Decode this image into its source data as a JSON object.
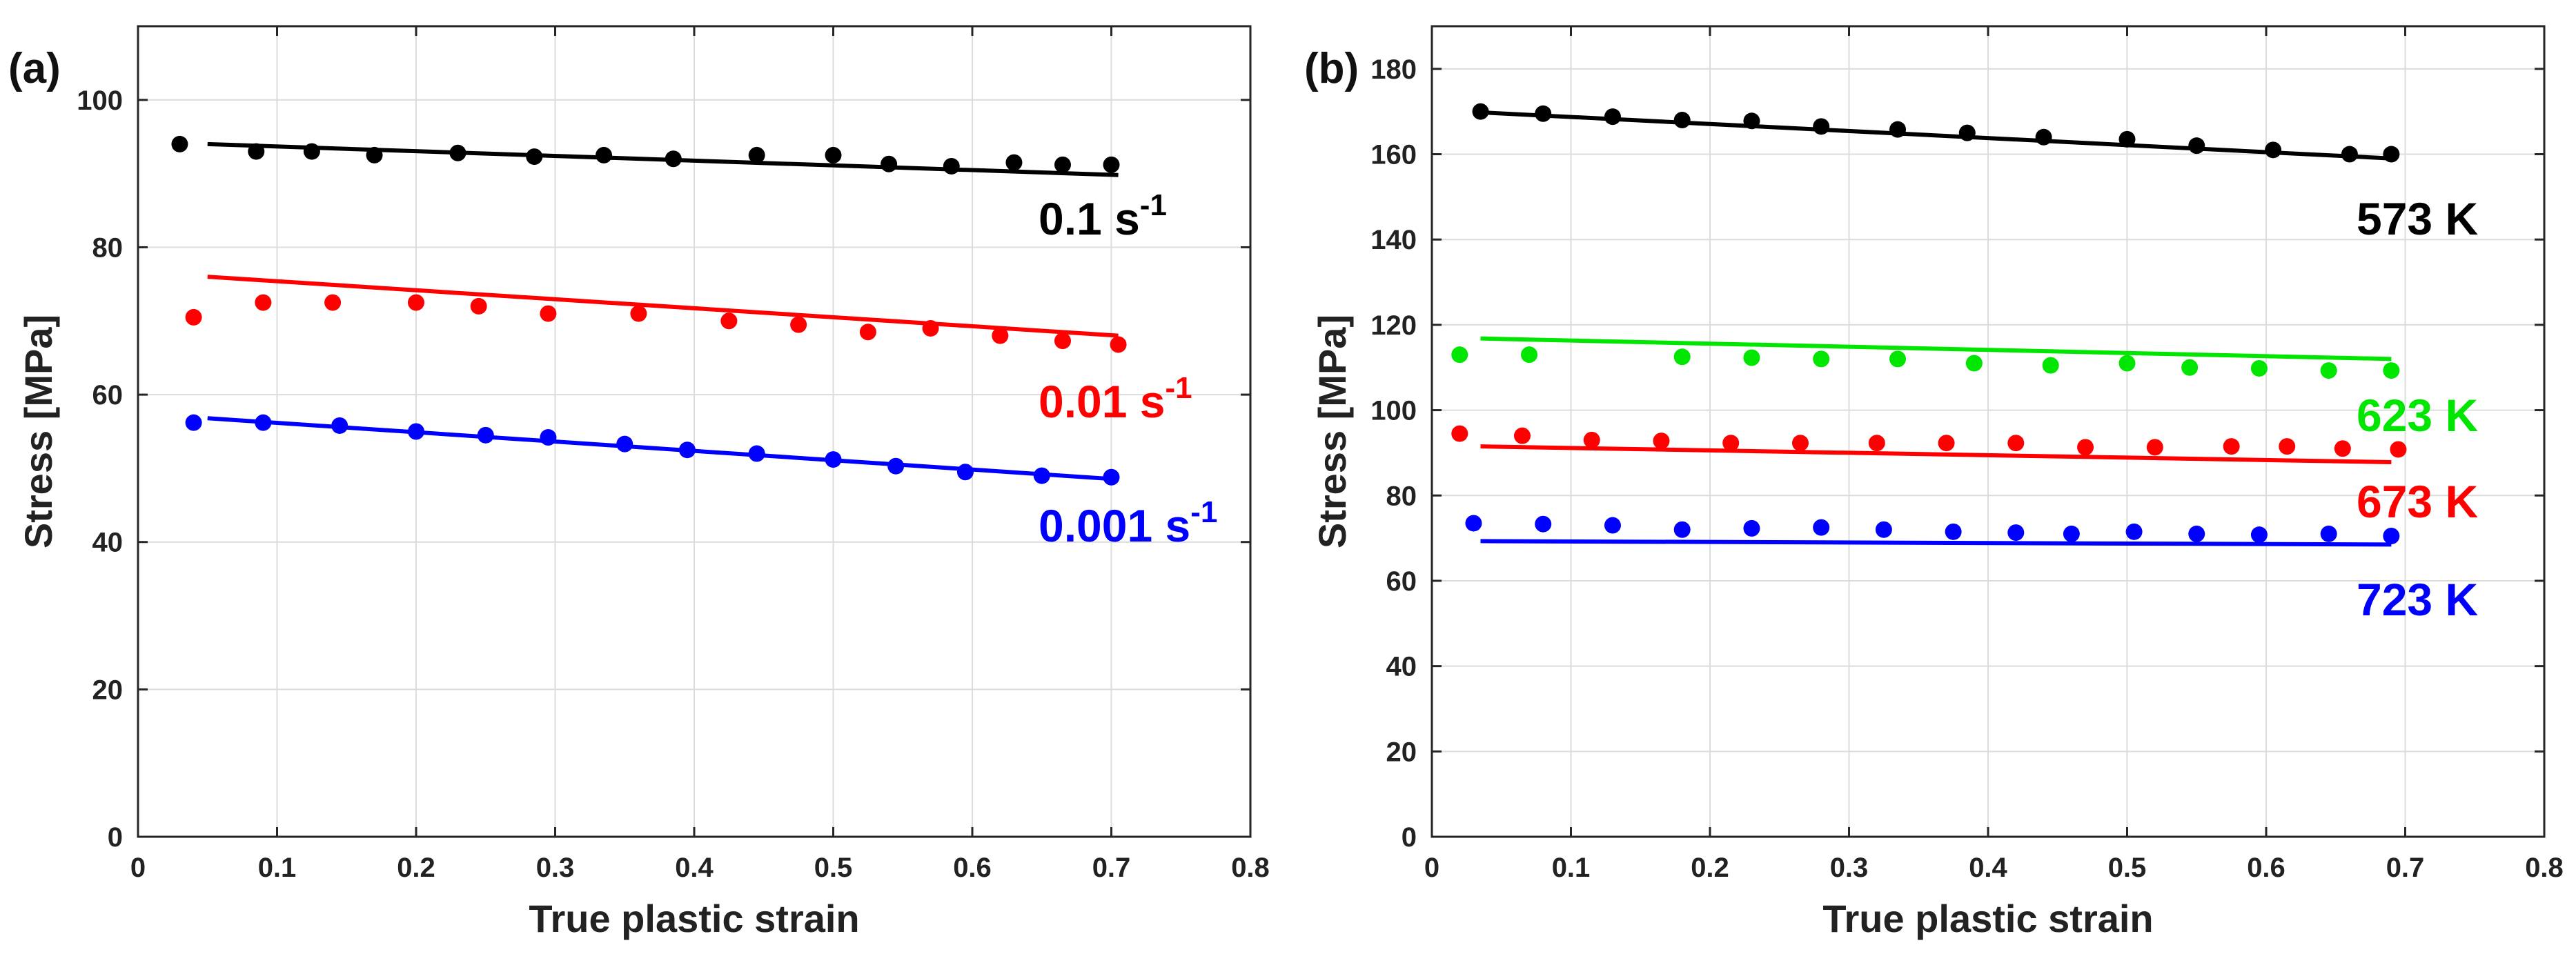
{
  "colors": {
    "black": "#000000",
    "red": "#ff0000",
    "blue": "#0000ff",
    "green": "#00e600"
  },
  "chart_data": [
    {
      "type": "scatter",
      "panel_label": "(a)",
      "xlabel": "True plastic strain",
      "ylabel": "Stress [MPa]",
      "xlim": [
        0,
        0.8
      ],
      "ylim": [
        0,
        110
      ],
      "xticks": [
        "0",
        "0.1",
        "0.2",
        "0.3",
        "0.4",
        "0.5",
        "0.6",
        "0.7",
        "0.8"
      ],
      "yticks": [
        "0",
        "20",
        "40",
        "60",
        "80",
        "100"
      ],
      "grid": true,
      "series": [
        {
          "name": "0.1 s-1",
          "label_main": "0.1 s",
          "label_sup": "-1",
          "color": "#000000",
          "points": [
            [
              0.03,
              94.0
            ],
            [
              0.085,
              93.0
            ],
            [
              0.125,
              93.0
            ],
            [
              0.17,
              92.5
            ],
            [
              0.23,
              92.8
            ],
            [
              0.285,
              92.3
            ],
            [
              0.335,
              92.5
            ],
            [
              0.385,
              92.0
            ],
            [
              0.445,
              92.5
            ],
            [
              0.5,
              92.5
            ],
            [
              0.54,
              91.3
            ],
            [
              0.585,
              91.0
            ],
            [
              0.63,
              91.5
            ],
            [
              0.665,
              91.2
            ],
            [
              0.7,
              91.2
            ]
          ],
          "fit": [
            [
              0.05,
              94.0
            ],
            [
              0.705,
              89.8
            ]
          ]
        },
        {
          "name": "0.01 s-1",
          "label_main": "0.01 s",
          "label_sup": "-1",
          "color": "#ff0000",
          "points": [
            [
              0.04,
              70.5
            ],
            [
              0.09,
              72.5
            ],
            [
              0.14,
              72.5
            ],
            [
              0.2,
              72.5
            ],
            [
              0.245,
              72.0
            ],
            [
              0.295,
              71.0
            ],
            [
              0.36,
              71.0
            ],
            [
              0.425,
              70.0
            ],
            [
              0.475,
              69.5
            ],
            [
              0.525,
              68.5
            ],
            [
              0.57,
              69.0
            ],
            [
              0.62,
              68.0
            ],
            [
              0.665,
              67.3
            ],
            [
              0.705,
              66.8
            ]
          ],
          "fit": [
            [
              0.05,
              76.0
            ],
            [
              0.705,
              68.0
            ]
          ]
        },
        {
          "name": "0.001 s-1",
          "label_main": "0.001 s",
          "label_sup": "-1",
          "color": "#0000ff",
          "points": [
            [
              0.04,
              56.2
            ],
            [
              0.09,
              56.2
            ],
            [
              0.145,
              55.8
            ],
            [
              0.2,
              55.0
            ],
            [
              0.25,
              54.5
            ],
            [
              0.295,
              54.2
            ],
            [
              0.35,
              53.3
            ],
            [
              0.395,
              52.5
            ],
            [
              0.445,
              52.0
            ],
            [
              0.5,
              51.2
            ],
            [
              0.545,
              50.3
            ],
            [
              0.595,
              49.5
            ],
            [
              0.65,
              49.0
            ],
            [
              0.7,
              48.8
            ]
          ],
          "fit": [
            [
              0.05,
              56.8
            ],
            [
              0.705,
              48.5
            ]
          ]
        }
      ]
    },
    {
      "type": "scatter",
      "panel_label": "(b)",
      "xlabel": "True plastic strain",
      "ylabel": "Stress [MPa]",
      "xlim": [
        0,
        0.8
      ],
      "ylim": [
        0,
        190
      ],
      "xticks": [
        "0",
        "0.1",
        "0.2",
        "0.3",
        "0.4",
        "0.5",
        "0.6",
        "0.7",
        "0.8"
      ],
      "yticks": [
        "0",
        "20",
        "40",
        "60",
        "80",
        "100",
        "120",
        "140",
        "160",
        "180"
      ],
      "grid": true,
      "series": [
        {
          "name": "573 K",
          "label_main": "573 K",
          "label_sup": "",
          "color": "#000000",
          "points": [
            [
              0.035,
              170.0
            ],
            [
              0.08,
              169.5
            ],
            [
              0.13,
              168.8
            ],
            [
              0.18,
              168.0
            ],
            [
              0.23,
              167.8
            ],
            [
              0.28,
              166.5
            ],
            [
              0.335,
              165.8
            ],
            [
              0.385,
              165.0
            ],
            [
              0.44,
              164.0
            ],
            [
              0.5,
              163.5
            ],
            [
              0.55,
              162.0
            ],
            [
              0.605,
              161.0
            ],
            [
              0.66,
              160.0
            ],
            [
              0.69,
              160.0
            ]
          ],
          "fit": [
            [
              0.035,
              169.8
            ],
            [
              0.69,
              159.0
            ]
          ]
        },
        {
          "name": "623 K",
          "label_main": "623 K",
          "label_sup": "",
          "color": "#00e600",
          "points": [
            [
              0.02,
              113.0
            ],
            [
              0.07,
              113.0
            ],
            [
              0.18,
              112.5
            ],
            [
              0.23,
              112.3
            ],
            [
              0.28,
              112.0
            ],
            [
              0.335,
              112.0
            ],
            [
              0.39,
              111.0
            ],
            [
              0.445,
              110.5
            ],
            [
              0.5,
              111.0
            ],
            [
              0.545,
              110.0
            ],
            [
              0.595,
              109.8
            ],
            [
              0.645,
              109.3
            ],
            [
              0.69,
              109.3
            ]
          ],
          "fit": [
            [
              0.035,
              116.8
            ],
            [
              0.69,
              112.0
            ]
          ]
        },
        {
          "name": "673 K",
          "label_main": "673 K",
          "label_sup": "",
          "color": "#ff0000",
          "points": [
            [
              0.02,
              94.5
            ],
            [
              0.065,
              94.0
            ],
            [
              0.115,
              93.0
            ],
            [
              0.165,
              92.8
            ],
            [
              0.215,
              92.3
            ],
            [
              0.265,
              92.3
            ],
            [
              0.32,
              92.3
            ],
            [
              0.37,
              92.3
            ],
            [
              0.42,
              92.3
            ],
            [
              0.47,
              91.3
            ],
            [
              0.52,
              91.3
            ],
            [
              0.575,
              91.5
            ],
            [
              0.615,
              91.5
            ],
            [
              0.655,
              91.0
            ],
            [
              0.695,
              90.8
            ]
          ],
          "fit": [
            [
              0.035,
              91.5
            ],
            [
              0.69,
              87.8
            ]
          ]
        },
        {
          "name": "723 K",
          "label_main": "723 K",
          "label_sup": "",
          "color": "#0000ff",
          "points": [
            [
              0.03,
              73.5
            ],
            [
              0.08,
              73.3
            ],
            [
              0.13,
              73.0
            ],
            [
              0.18,
              72.0
            ],
            [
              0.23,
              72.3
            ],
            [
              0.28,
              72.5
            ],
            [
              0.325,
              72.0
            ],
            [
              0.375,
              71.5
            ],
            [
              0.42,
              71.3
            ],
            [
              0.46,
              71.0
            ],
            [
              0.505,
              71.5
            ],
            [
              0.55,
              71.0
            ],
            [
              0.595,
              70.8
            ],
            [
              0.645,
              71.0
            ],
            [
              0.69,
              70.5
            ]
          ],
          "fit": [
            [
              0.035,
              69.3
            ],
            [
              0.69,
              68.5
            ]
          ]
        }
      ]
    }
  ]
}
